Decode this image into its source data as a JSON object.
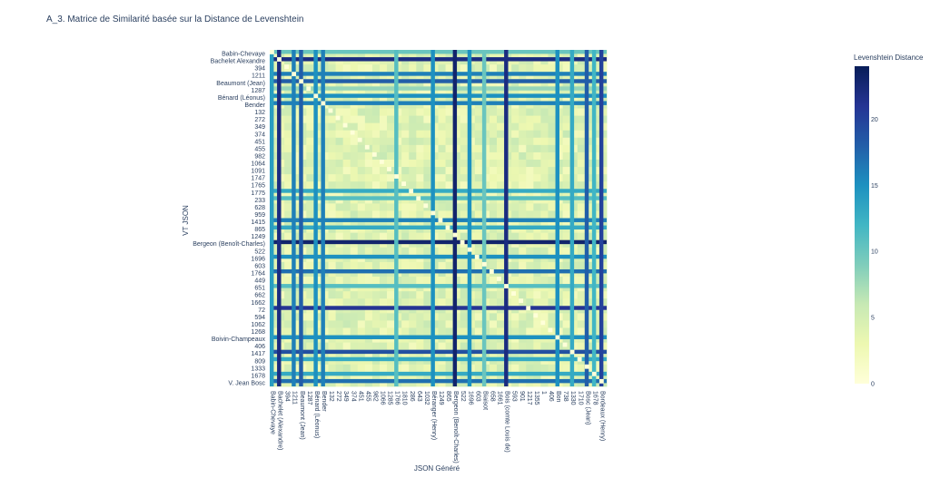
{
  "chart_data": {
    "type": "heatmap",
    "title": "A_3. Matrice de Similarité basée sur la Distance de Levenshtein",
    "xlabel": "JSON Généré",
    "ylabel": "VT JSON",
    "colorbar": {
      "title": "Levenshtein Distance",
      "range": [
        0,
        24
      ],
      "ticks": [
        0,
        5,
        10,
        15,
        20
      ],
      "colors": [
        "#ffffd9",
        "#edf8b1",
        "#c7e9b4",
        "#7fcdbb",
        "#41b6c4",
        "#1d91c0",
        "#225ea8",
        "#253494",
        "#081d58"
      ]
    },
    "n_cells": 46,
    "y_ticks": [
      {
        "index": 0,
        "label": "Babin-Chevaye"
      },
      {
        "index": 1,
        "label": "Bachelet Alexandre"
      },
      {
        "index": 2,
        "label": "394"
      },
      {
        "index": 3,
        "label": "1211"
      },
      {
        "index": 4,
        "label": "Beaumont (Jean)"
      },
      {
        "index": 5,
        "label": "1287"
      },
      {
        "index": 6,
        "label": "Bénard (Léonus)"
      },
      {
        "index": 7,
        "label": "Bender"
      },
      {
        "index": 8,
        "label": "132"
      },
      {
        "index": 9,
        "label": "272"
      },
      {
        "index": 10,
        "label": "349"
      },
      {
        "index": 11,
        "label": "374"
      },
      {
        "index": 12,
        "label": "451"
      },
      {
        "index": 13,
        "label": "455"
      },
      {
        "index": 14,
        "label": "982"
      },
      {
        "index": 15,
        "label": "1064"
      },
      {
        "index": 16,
        "label": "1091"
      },
      {
        "index": 17,
        "label": "1747"
      },
      {
        "index": 18,
        "label": "1765"
      },
      {
        "index": 19,
        "label": "1775"
      },
      {
        "index": 20,
        "label": "233"
      },
      {
        "index": 21,
        "label": "628"
      },
      {
        "index": 22,
        "label": "959"
      },
      {
        "index": 23,
        "label": "1415"
      },
      {
        "index": 24,
        "label": "865"
      },
      {
        "index": 25,
        "label": "1249"
      },
      {
        "index": 26,
        "label": "Bergeon (Benoît-Charles)"
      },
      {
        "index": 27,
        "label": "522"
      },
      {
        "index": 28,
        "label": "1696"
      },
      {
        "index": 29,
        "label": "603"
      },
      {
        "index": 30,
        "label": "1764"
      },
      {
        "index": 31,
        "label": "449"
      },
      {
        "index": 32,
        "label": "651"
      },
      {
        "index": 33,
        "label": "662"
      },
      {
        "index": 34,
        "label": "1662"
      },
      {
        "index": 35,
        "label": "72"
      },
      {
        "index": 36,
        "label": "594"
      },
      {
        "index": 37,
        "label": "1062"
      },
      {
        "index": 38,
        "label": "1268"
      },
      {
        "index": 39,
        "label": "Boivin-Champeaux"
      },
      {
        "index": 40,
        "label": "406"
      },
      {
        "index": 41,
        "label": "1417"
      },
      {
        "index": 42,
        "label": "809"
      },
      {
        "index": 43,
        "label": "1333"
      },
      {
        "index": 44,
        "label": "1678"
      },
      {
        "index": 45,
        "label": "V. Jean Bosc"
      }
    ],
    "x_ticks": [
      {
        "index": 0,
        "label": "Babin-Chevaye"
      },
      {
        "index": 1,
        "label": "Bachelet (Alexandre)"
      },
      {
        "index": 2,
        "label": "394"
      },
      {
        "index": 3,
        "label": "1211"
      },
      {
        "index": 4,
        "label": "Beaumont (Jean)"
      },
      {
        "index": 5,
        "label": "1287"
      },
      {
        "index": 6,
        "label": "Bénard (Léonus)"
      },
      {
        "index": 7,
        "label": "Bender"
      },
      {
        "index": 8,
        "label": "132"
      },
      {
        "index": 9,
        "label": "272"
      },
      {
        "index": 10,
        "label": "349"
      },
      {
        "index": 11,
        "label": "374"
      },
      {
        "index": 12,
        "label": "451"
      },
      {
        "index": 13,
        "label": "455"
      },
      {
        "index": 14,
        "label": "982"
      },
      {
        "index": 15,
        "label": "1066"
      },
      {
        "index": 16,
        "label": "1285"
      },
      {
        "index": 17,
        "label": "1766"
      },
      {
        "index": 18,
        "label": "1810"
      },
      {
        "index": 19,
        "label": "286"
      },
      {
        "index": 20,
        "label": "643"
      },
      {
        "index": 21,
        "label": "1032"
      },
      {
        "index": 22,
        "label": "Béranger (Henry)"
      },
      {
        "index": 23,
        "label": "1249"
      },
      {
        "index": 24,
        "label": "865"
      },
      {
        "index": 25,
        "label": "Bergeon (Benoît-Charles)"
      },
      {
        "index": 26,
        "label": "522"
      },
      {
        "index": 27,
        "label": "1696"
      },
      {
        "index": 28,
        "label": "603"
      },
      {
        "index": 29,
        "label": "Biaisot"
      },
      {
        "index": 30,
        "label": "658"
      },
      {
        "index": 31,
        "label": "1661"
      },
      {
        "index": 32,
        "label": "Bois (comte Louis de)"
      },
      {
        "index": 33,
        "label": "593"
      },
      {
        "index": 34,
        "label": "901"
      },
      {
        "index": 35,
        "label": "1217"
      },
      {
        "index": 36,
        "label": "1355"
      },
      {
        "index": 37,
        "label": "1"
      },
      {
        "index": 38,
        "label": "406"
      },
      {
        "index": 39,
        "label": "Bon"
      },
      {
        "index": 40,
        "label": "738"
      },
      {
        "index": 41,
        "label": "1330"
      },
      {
        "index": 42,
        "label": "1710"
      },
      {
        "index": 43,
        "label": "Bosc (Jean)"
      },
      {
        "index": 44,
        "label": "1678"
      },
      {
        "index": 45,
        "label": "Bordeaux (Henry)"
      }
    ],
    "row_bands": [
      {
        "index": 0,
        "value": 10
      },
      {
        "index": 1,
        "value": 22
      },
      {
        "index": 3,
        "value": 16
      },
      {
        "index": 4,
        "value": 18
      },
      {
        "index": 5,
        "value": 8
      },
      {
        "index": 6,
        "value": 15
      },
      {
        "index": 7,
        "value": 16
      },
      {
        "index": 19,
        "value": 13
      },
      {
        "index": 20,
        "value": 11
      },
      {
        "index": 23,
        "value": 16
      },
      {
        "index": 24,
        "value": 13
      },
      {
        "index": 26,
        "value": 23
      },
      {
        "index": 28,
        "value": 15
      },
      {
        "index": 30,
        "value": 17
      },
      {
        "index": 32,
        "value": 11
      },
      {
        "index": 35,
        "value": 21
      },
      {
        "index": 39,
        "value": 15
      },
      {
        "index": 41,
        "value": 19
      },
      {
        "index": 42,
        "value": 13
      },
      {
        "index": 44,
        "value": 13
      },
      {
        "index": 45,
        "value": 17
      }
    ],
    "col_bands": [
      {
        "index": 0,
        "value": 14
      },
      {
        "index": 1,
        "value": 22
      },
      {
        "index": 3,
        "value": 16
      },
      {
        "index": 4,
        "value": 18
      },
      {
        "index": 6,
        "value": 15
      },
      {
        "index": 7,
        "value": 16
      },
      {
        "index": 17,
        "value": 11
      },
      {
        "index": 22,
        "value": 15
      },
      {
        "index": 25,
        "value": 23
      },
      {
        "index": 27,
        "value": 15
      },
      {
        "index": 29,
        "value": 10
      },
      {
        "index": 32,
        "value": 22
      },
      {
        "index": 39,
        "value": 15
      },
      {
        "index": 41,
        "value": 13
      },
      {
        "index": 43,
        "value": 18
      },
      {
        "index": 44,
        "value": 12
      },
      {
        "index": 45,
        "value": 20
      }
    ],
    "background_range": [
      2,
      6
    ],
    "diagonal_value": 0
  }
}
